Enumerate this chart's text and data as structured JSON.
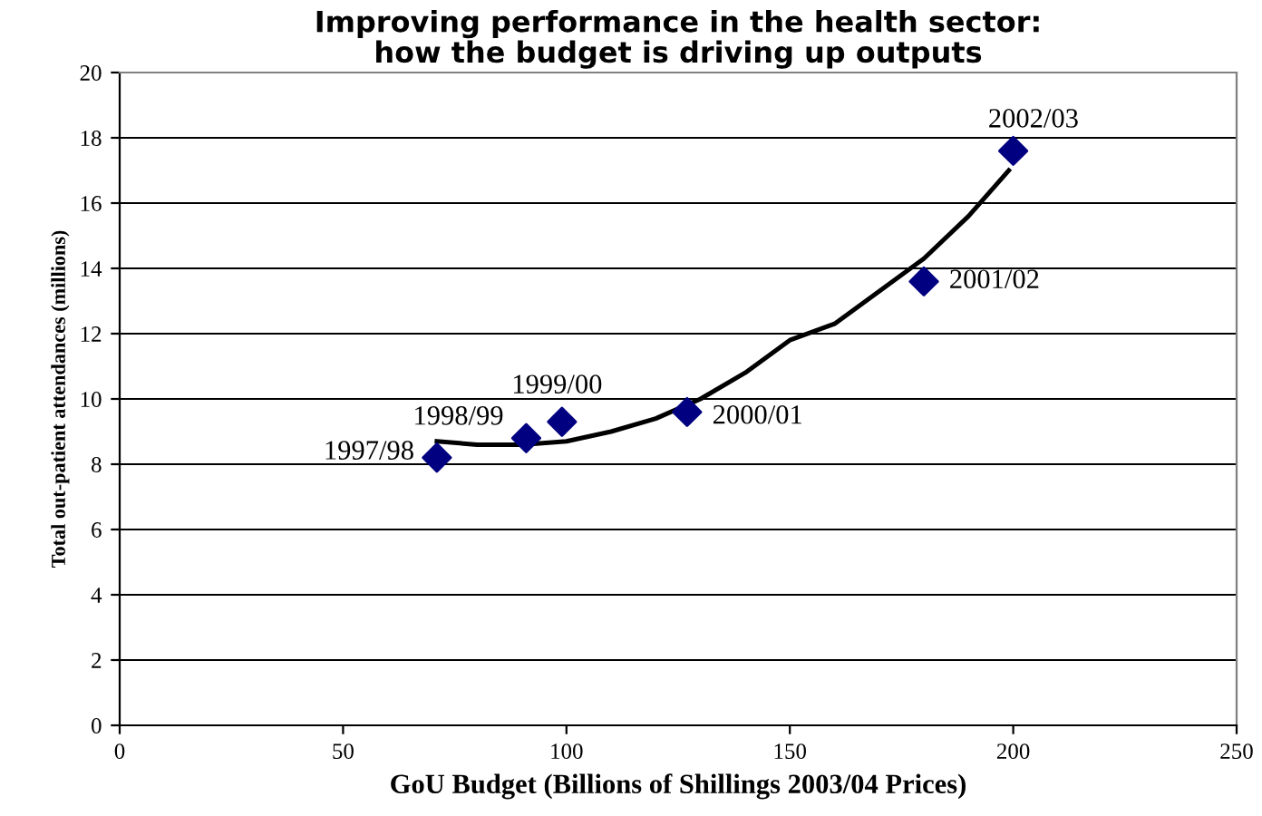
{
  "chart_data": {
    "type": "scatter",
    "title": "Improving performance in the health sector:\nhow the budget is driving up outputs",
    "xlabel": "GoU Budget (Billions of Shillings 2003/04 Prices)",
    "ylabel": "Total out-patient attendances (millions)",
    "series": [
      {
        "color": "#000080",
        "marker": "diamond",
        "x": [
          71,
          91,
          99,
          127,
          180,
          200
        ],
        "values": [
          8.2,
          8.8,
          9.3,
          9.6,
          13.6,
          17.6
        ]
      },
      {
        "type": "line",
        "color": "#000000",
        "marker": "none",
        "line_style": "solid",
        "x": [
          71,
          80,
          90,
          100,
          110,
          120,
          130,
          140,
          150,
          160,
          170,
          180,
          190,
          199
        ],
        "values": [
          8.7,
          8.6,
          8.6,
          8.7,
          9.0,
          9.4,
          10.0,
          10.8,
          11.8,
          12.3,
          13.3,
          14.3,
          15.6,
          17.0
        ]
      }
    ],
    "annotations": [
      {
        "text": "1997/98",
        "x": 71,
        "y": 8.2
      },
      {
        "text": "1998/99",
        "x": 91,
        "y": 8.8
      },
      {
        "text": "1999/00",
        "x": 99,
        "y": 9.3
      },
      {
        "text": "2000/01",
        "x": 127,
        "y": 9.6
      },
      {
        "text": "2001/02",
        "x": 180,
        "y": 13.6
      },
      {
        "text": "2002/03",
        "x": 200,
        "y": 17.6
      }
    ],
    "xlim": [
      0,
      250
    ],
    "xticks": [
      0,
      50,
      100,
      150,
      200,
      250
    ],
    "ylim": [
      0,
      20
    ],
    "yticks": [
      0,
      2,
      4,
      6,
      8,
      10,
      12,
      14,
      16,
      18,
      20
    ],
    "grid": "y",
    "legend": false
  }
}
